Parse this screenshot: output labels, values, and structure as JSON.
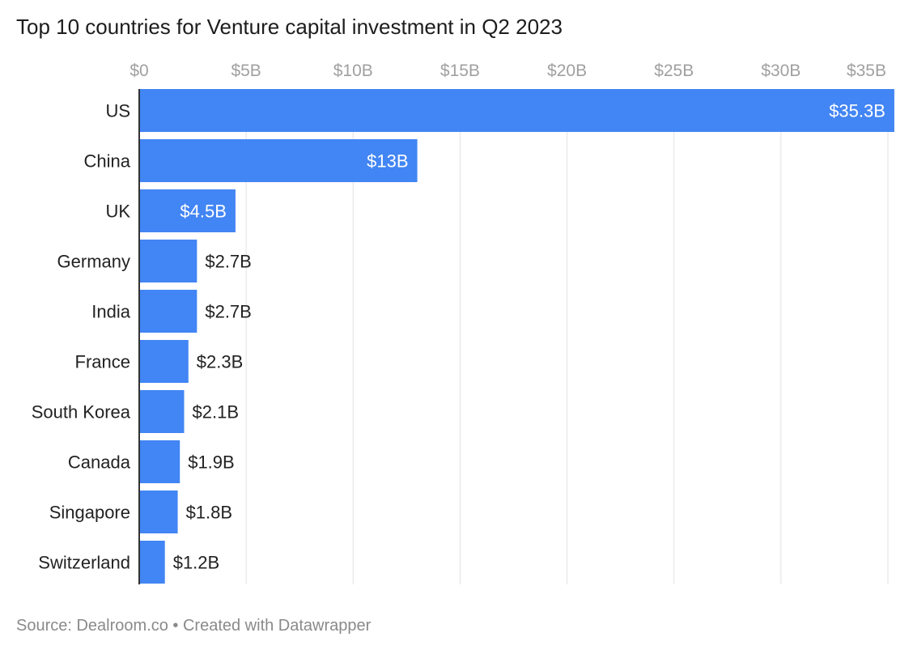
{
  "colors": {
    "bar": "#4285f4",
    "grid": "#e1e1e1",
    "axis": "#333333",
    "label_inside": "#ffffff",
    "label_outside": "#222222"
  },
  "chart_data": {
    "type": "bar",
    "orientation": "horizontal",
    "title": "Top 10 countries for Venture capital investment in Q2 2023",
    "xlabel": "",
    "ylabel": "",
    "xlim": [
      0,
      35
    ],
    "grid": true,
    "unit": "USD billions",
    "ticks": [
      {
        "value": 0,
        "label": "$0"
      },
      {
        "value": 5,
        "label": "$5B"
      },
      {
        "value": 10,
        "label": "$10B"
      },
      {
        "value": 15,
        "label": "$15B"
      },
      {
        "value": 20,
        "label": "$20B"
      },
      {
        "value": 25,
        "label": "$25B"
      },
      {
        "value": 30,
        "label": "$30B"
      },
      {
        "value": 35,
        "label": "$35B"
      }
    ],
    "categories": [
      "US",
      "China",
      "UK",
      "Germany",
      "India",
      "France",
      "South Korea",
      "Canada",
      "Singapore",
      "Switzerland"
    ],
    "values": [
      35.3,
      13,
      4.5,
      2.7,
      2.7,
      2.3,
      2.1,
      1.9,
      1.8,
      1.2
    ],
    "value_labels": [
      "$35.3B",
      "$13B",
      "$4.5B",
      "$2.7B",
      "$2.7B",
      "$2.3B",
      "$2.1B",
      "$1.9B",
      "$1.8B",
      "$1.2B"
    ]
  },
  "footer": {
    "text": "Source: Dealroom.co • Created with Datawrapper"
  }
}
